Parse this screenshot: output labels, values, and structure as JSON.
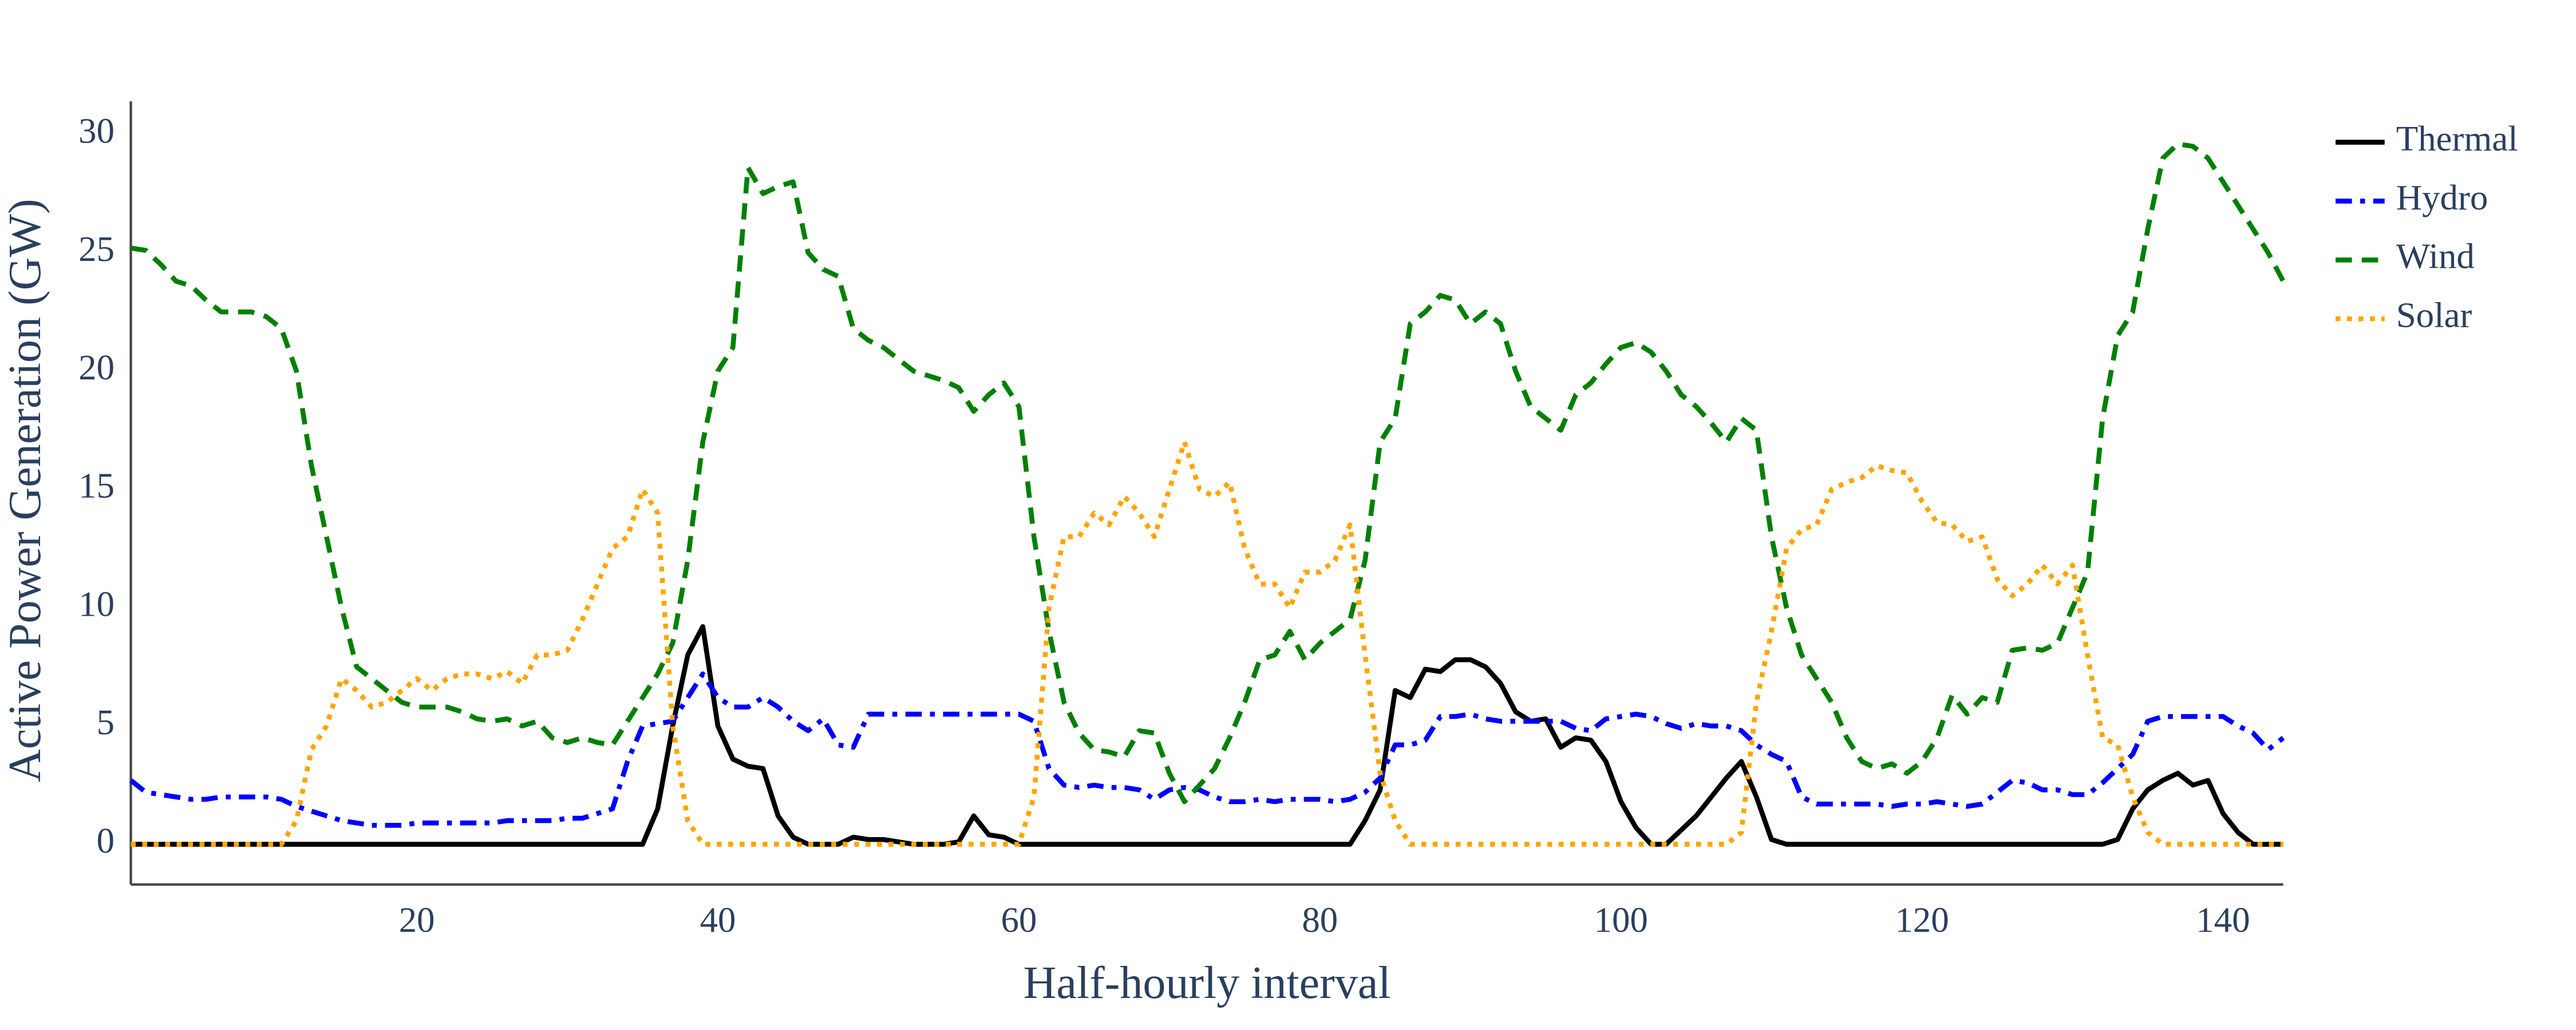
{
  "chart_data": {
    "type": "line",
    "x_label": "Half-hourly interval",
    "y_label": "Active Power Generation (GW)",
    "xlim": [
      1,
      144
    ],
    "ylim": [
      -1.7,
      31.4
    ],
    "xticks": [
      20,
      40,
      60,
      80,
      100,
      120,
      140
    ],
    "yticks": [
      0,
      5,
      10,
      15,
      20,
      25,
      30
    ],
    "grid": false,
    "legend_position": "upper right",
    "x": [
      1,
      2,
      3,
      4,
      5,
      6,
      7,
      8,
      9,
      10,
      11,
      12,
      13,
      14,
      15,
      16,
      17,
      18,
      19,
      20,
      21,
      22,
      23,
      24,
      25,
      26,
      27,
      28,
      29,
      30,
      31,
      32,
      33,
      34,
      35,
      36,
      37,
      38,
      39,
      40,
      41,
      42,
      43,
      44,
      45,
      46,
      47,
      48,
      49,
      50,
      51,
      52,
      53,
      54,
      55,
      56,
      57,
      58,
      59,
      60,
      61,
      62,
      63,
      64,
      65,
      66,
      67,
      68,
      69,
      70,
      71,
      72,
      73,
      74,
      75,
      76,
      77,
      78,
      79,
      80,
      81,
      82,
      83,
      84,
      85,
      86,
      87,
      88,
      89,
      90,
      91,
      92,
      93,
      94,
      95,
      96,
      97,
      98,
      99,
      100,
      101,
      102,
      103,
      104,
      105,
      106,
      107,
      108,
      109,
      110,
      111,
      112,
      113,
      114,
      115,
      116,
      117,
      118,
      119,
      120,
      121,
      122,
      123,
      124,
      125,
      126,
      127,
      128,
      129,
      130,
      131,
      132,
      133,
      134,
      135,
      136,
      137,
      138,
      139,
      140,
      141,
      142,
      143,
      144
    ],
    "series": [
      {
        "name": "Thermal",
        "color": "#000000",
        "dash": "solid",
        "values": [
          0,
          0,
          0,
          0,
          0,
          0,
          0,
          0,
          0,
          0,
          0,
          0,
          0,
          0,
          0,
          0,
          0,
          0,
          0,
          0,
          0,
          0,
          0,
          0,
          0,
          0,
          0,
          0,
          0,
          0,
          0,
          0,
          0,
          0,
          0,
          1.5,
          5,
          8,
          9.2,
          5,
          3.6,
          3.3,
          3.2,
          1.2,
          0.3,
          0,
          0,
          0,
          0.3,
          0.2,
          0.2,
          0.1,
          0,
          0,
          0,
          0.1,
          1.2,
          0.4,
          0.3,
          0,
          0,
          0,
          0,
          0,
          0,
          0,
          0,
          0,
          0,
          0,
          0,
          0,
          0,
          0,
          0,
          0,
          0,
          0,
          0,
          0,
          0,
          0,
          1,
          2.3,
          6.5,
          6.2,
          7.4,
          7.3,
          7.8,
          7.8,
          7.5,
          6.8,
          5.6,
          5.2,
          5.3,
          4.1,
          4.5,
          4.4,
          3.5,
          1.8,
          0.7,
          0,
          0,
          0.6,
          1.2,
          2,
          2.8,
          3.5,
          2,
          0.2,
          0,
          0,
          0,
          0,
          0,
          0,
          0,
          0,
          0,
          0,
          0,
          0,
          0,
          0,
          0,
          0,
          0,
          0,
          0,
          0,
          0,
          0,
          0.2,
          1.5,
          2.3,
          2.7,
          3,
          2.5,
          2.7,
          1.3,
          0.5,
          0,
          0,
          0
        ]
      },
      {
        "name": "Hydro",
        "color": "#0000ff",
        "dash": "dashdot",
        "values": [
          2.7,
          2.2,
          2.1,
          2,
          1.9,
          1.9,
          2,
          2,
          2,
          2,
          1.9,
          1.6,
          1.4,
          1.2,
          1,
          0.9,
          0.8,
          0.8,
          0.8,
          0.9,
          0.9,
          0.9,
          0.9,
          0.9,
          0.9,
          1,
          1,
          1,
          1,
          1.1,
          1.1,
          1.3,
          1.5,
          3.5,
          5,
          5.1,
          5.2,
          6.2,
          7.2,
          6.2,
          5.8,
          5.8,
          6.2,
          5.8,
          5.2,
          4.8,
          5.3,
          4.2,
          4.1,
          5.5,
          5.5,
          5.5,
          5.5,
          5.5,
          5.5,
          5.5,
          5.5,
          5.5,
          5.5,
          5.5,
          5.2,
          3.2,
          2.5,
          2.4,
          2.5,
          2.4,
          2.4,
          2.3,
          1.9,
          2.3,
          2.4,
          2.3,
          2,
          1.8,
          1.8,
          1.9,
          1.8,
          1.9,
          1.9,
          1.9,
          1.8,
          1.9,
          2.2,
          2.8,
          4.2,
          4.2,
          4.4,
          5.4,
          5.4,
          5.5,
          5.3,
          5.2,
          5.2,
          5.2,
          5.2,
          5.2,
          4.9,
          4.8,
          5.3,
          5.4,
          5.5,
          5.4,
          5.1,
          4.9,
          5.1,
          5,
          5,
          4.8,
          4.2,
          3.8,
          3.5,
          2,
          1.7,
          1.7,
          1.7,
          1.7,
          1.7,
          1.6,
          1.7,
          1.7,
          1.8,
          1.7,
          1.6,
          1.7,
          2.2,
          2.7,
          2.6,
          2.3,
          2.3,
          2.1,
          2.1,
          2.6,
          3.2,
          3.8,
          5.2,
          5.4,
          5.4,
          5.4,
          5.4,
          5.4,
          5,
          4.7,
          4,
          4.5
        ]
      },
      {
        "name": "Wind",
        "color": "#008000",
        "dash": "dash",
        "values": [
          25.2,
          25.1,
          24.5,
          23.8,
          23.6,
          23,
          22.5,
          22.5,
          22.5,
          22.3,
          21.8,
          20,
          16,
          13,
          10,
          7.5,
          7,
          6.5,
          6,
          5.8,
          5.8,
          5.8,
          5.6,
          5.3,
          5.2,
          5.3,
          5,
          5.2,
          4.5,
          4.3,
          4.5,
          4.3,
          4.2,
          5.2,
          6.2,
          7.2,
          8.5,
          12,
          17,
          20,
          21,
          28.6,
          27.5,
          27.8,
          28,
          25,
          24.3,
          24,
          21.8,
          21.3,
          21,
          20.5,
          20,
          19.8,
          19.6,
          19.3,
          18.3,
          19,
          19.5,
          18.5,
          13,
          9,
          6,
          4.7,
          4,
          3.9,
          3.7,
          4.8,
          4.7,
          3,
          1.8,
          2.5,
          3.2,
          4.5,
          6,
          7.8,
          8,
          9,
          7.8,
          8.5,
          9,
          9.5,
          12,
          17,
          18,
          22,
          22.5,
          23.2,
          23,
          22,
          22.5,
          22,
          20,
          18.5,
          18,
          17.5,
          19,
          19.5,
          20.3,
          21,
          21.2,
          20.8,
          20,
          19,
          18.5,
          17.8,
          17,
          18,
          17.5,
          13,
          10,
          8,
          7,
          6,
          4.5,
          3.5,
          3.2,
          3.4,
          3,
          3.5,
          4.5,
          6.3,
          5.5,
          6.2,
          6,
          8.2,
          8.3,
          8.2,
          8.5,
          10,
          11.5,
          18,
          21.5,
          22.5,
          26,
          29,
          29.6,
          29.5,
          29,
          28,
          27,
          26,
          25,
          23.8
        ]
      },
      {
        "name": "Solar",
        "color": "#ffa500",
        "dash": "dot",
        "values": [
          0,
          0,
          0,
          0,
          0,
          0,
          0,
          0,
          0,
          0,
          0,
          1,
          4,
          5,
          7,
          6.5,
          5.8,
          6,
          6.5,
          7,
          6.5,
          7,
          7.2,
          7.2,
          7,
          7.3,
          6.8,
          8,
          8,
          8.2,
          9.5,
          11,
          12.5,
          13,
          15,
          14,
          5,
          1,
          0,
          0,
          0,
          0,
          0,
          0,
          0,
          0,
          0,
          0,
          0,
          0,
          0,
          0,
          0,
          0,
          0,
          0,
          0,
          0,
          0,
          0,
          2,
          10,
          13,
          13,
          14,
          13.5,
          14.7,
          14,
          13,
          15,
          17,
          15,
          14.7,
          15.3,
          12.5,
          11,
          11,
          10,
          11.5,
          11.5,
          12,
          13.5,
          8,
          3,
          1,
          0,
          0,
          0,
          0,
          0,
          0,
          0,
          0,
          0,
          0,
          0,
          0,
          0,
          0,
          0,
          0,
          0,
          0,
          0,
          0,
          0,
          0,
          0.5,
          6,
          9,
          12.5,
          13.3,
          13.5,
          15,
          15.3,
          15.5,
          16,
          15.8,
          15.7,
          14.5,
          13.6,
          13.5,
          12.8,
          13,
          11.2,
          10.5,
          11,
          11.8,
          11,
          11.8,
          8,
          4.5,
          4.2,
          2,
          0.5,
          0,
          0,
          0,
          0,
          0,
          0,
          0,
          0,
          0
        ]
      }
    ]
  }
}
